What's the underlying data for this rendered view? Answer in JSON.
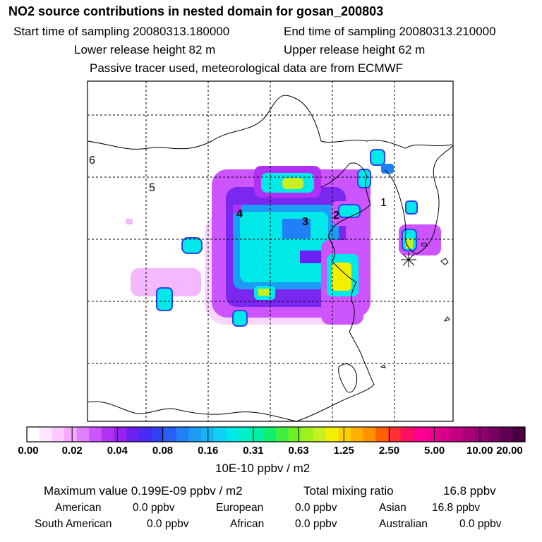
{
  "chart_data": {
    "type": "heatmap",
    "title": "NO2 source contributions in nested domain for gosan_200803",
    "subtitles": {
      "start": "Start time of sampling 20080313.180000",
      "end": "End time of sampling 20080313.210000",
      "lower": "Lower release height   82 m",
      "upper": "Upper release height   62 m",
      "tracer": "Passive tracer used, meteorological data are from ECMWF"
    },
    "region_labels": [
      "1",
      "2",
      "3",
      "4",
      "5",
      "6"
    ],
    "colorbar": {
      "unit": "10E-10 ppbv / m2",
      "ticks": [
        "0.00",
        "0.02",
        "0.04",
        "0.08",
        "0.16",
        "0.31",
        "0.63",
        "1.25",
        "2.50",
        "5.00",
        "10.00",
        "20.00"
      ],
      "colors": [
        "#ffffff",
        "#ffe6ff",
        "#ffcaff",
        "#f5aaff",
        "#e080ff",
        "#cc55ff",
        "#b030f5",
        "#9a20f0",
        "#6a20f0",
        "#4a28f5",
        "#3040f5",
        "#2860f5",
        "#2080f5",
        "#1c9cf5",
        "#14b4f5",
        "#10d0f5",
        "#00e8e8",
        "#00f0c8",
        "#00f0a0",
        "#10f070",
        "#40f040",
        "#70f020",
        "#a0f020",
        "#c8f020",
        "#f0f000",
        "#ffd000",
        "#ffb000",
        "#ff9000",
        "#ff6000",
        "#ff3030",
        "#ff1060",
        "#ff0090",
        "#f00090",
        "#d80088",
        "#c00080",
        "#a80078",
        "#900070",
        "#780060",
        "#600050",
        "#480040"
      ]
    },
    "stats": {
      "max_label": "Maximum value  0.199E-09 ppbv / m2",
      "total_label": "Total mixing ratio",
      "total_value": "16.8 ppbv"
    },
    "regions": [
      {
        "name": "American",
        "value": "0.0 ppbv"
      },
      {
        "name": "European",
        "value": "0.0 ppbv"
      },
      {
        "name": "Asian",
        "value": "16.8 ppbv"
      },
      {
        "name": "South American",
        "value": "0.0 ppbv"
      },
      {
        "name": "African",
        "value": "0.0 ppbv"
      },
      {
        "name": "Australian",
        "value": "0.0 ppbv"
      }
    ]
  }
}
